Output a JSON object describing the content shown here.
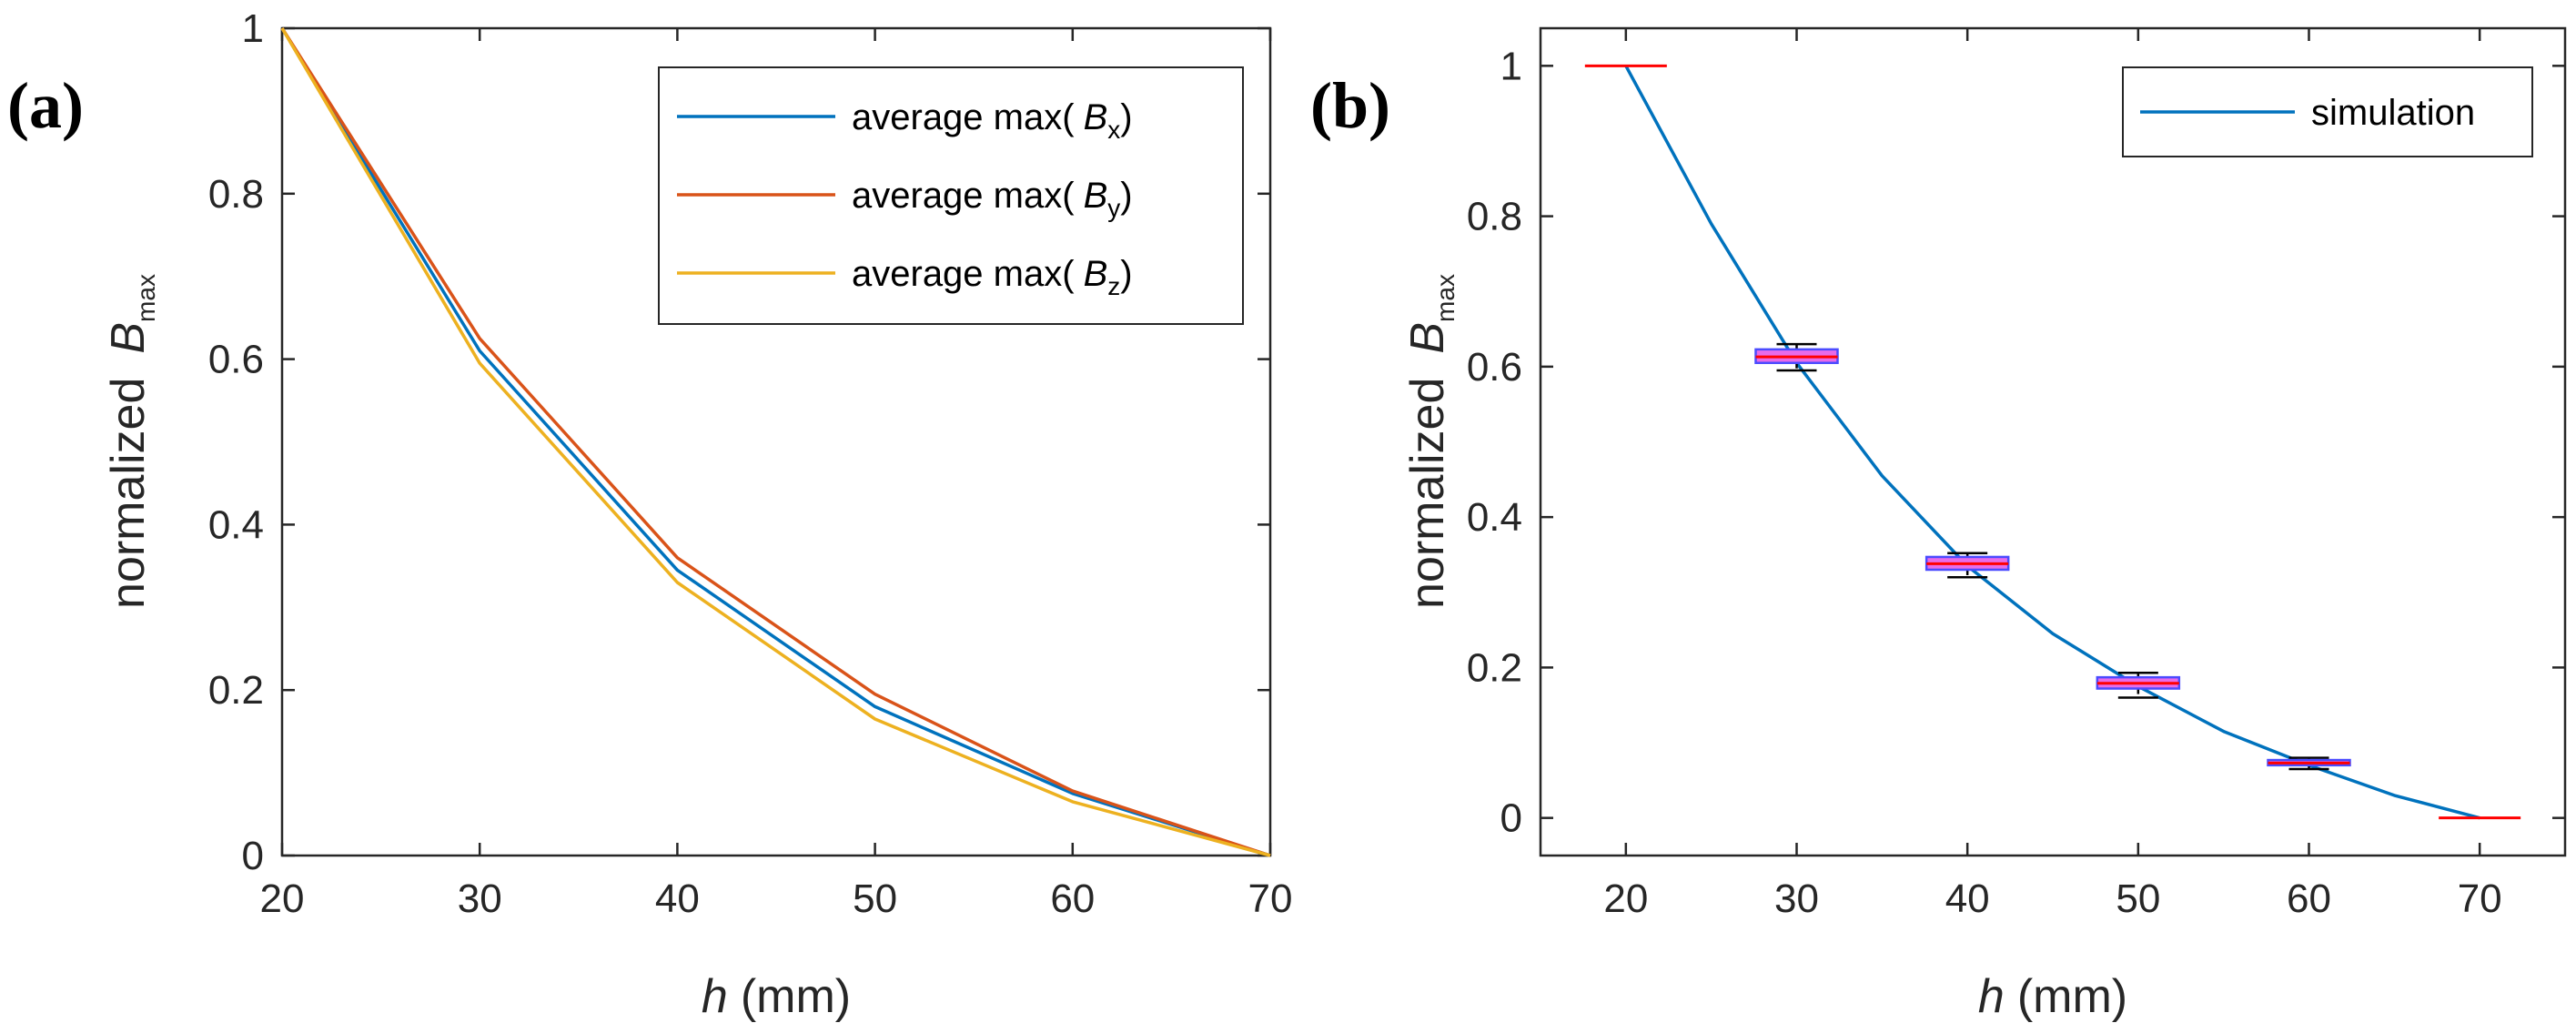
{
  "chart_data": [
    {
      "panel": "(a)",
      "type": "line",
      "xlabel_var": "h",
      "xlabel_unit": "(mm)",
      "ylabel_prefix": "normalized",
      "ylabel_var": "B",
      "ylabel_sub": "max",
      "xlim": [
        20,
        70
      ],
      "ylim": [
        0,
        1
      ],
      "xticks": [
        20,
        30,
        40,
        50,
        60,
        70
      ],
      "yticks": [
        0,
        0.2,
        0.4,
        0.6,
        0.8,
        1
      ],
      "ytick_labels": [
        "0",
        "0.2",
        "0.4",
        "0.6",
        "0.8",
        "1"
      ],
      "legend_position": "top-right",
      "x": [
        20,
        30,
        40,
        50,
        60,
        70
      ],
      "series": [
        {
          "name": "average max( B_x)",
          "label_prefix": "average max(",
          "label_var": "B",
          "label_sub": "x",
          "label_suffix": ")",
          "color": "#0072BD",
          "values": [
            1,
            0.61,
            0.345,
            0.18,
            0.075,
            0
          ]
        },
        {
          "name": "average max( B_y)",
          "label_prefix": "average max(",
          "label_var": "B",
          "label_sub": "y",
          "label_suffix": ")",
          "color": "#D95319",
          "values": [
            1,
            0.625,
            0.36,
            0.195,
            0.078,
            0
          ]
        },
        {
          "name": "average max( B_z)",
          "label_prefix": "average max(",
          "label_var": "B",
          "label_sub": "z",
          "label_suffix": ")",
          "color": "#EDB120",
          "values": [
            1,
            0.595,
            0.33,
            0.165,
            0.065,
            0
          ]
        }
      ]
    },
    {
      "panel": "(b)",
      "type": "line",
      "xlabel_var": "h",
      "xlabel_unit": "(mm)",
      "ylabel_prefix": "normalized",
      "ylabel_var": "B",
      "ylabel_sub": "max",
      "xlim": [
        15,
        75
      ],
      "ylim": [
        -0.05,
        1.05
      ],
      "xticks": [
        20,
        30,
        40,
        50,
        60,
        70
      ],
      "yticks": [
        0,
        0.2,
        0.4,
        0.6,
        0.8,
        1
      ],
      "ytick_labels": [
        "0",
        "0.2",
        "0.4",
        "0.6",
        "0.8",
        "1"
      ],
      "legend_position": "top-right",
      "series": [
        {
          "name": "simulation",
          "color": "#0072BD",
          "x": [
            20,
            25,
            30,
            35,
            40,
            45,
            50,
            55,
            60,
            65,
            70
          ],
          "values": [
            1,
            0.79,
            0.605,
            0.455,
            0.335,
            0.245,
            0.175,
            0.115,
            0.07,
            0.03,
            0
          ]
        }
      ],
      "boxplots": [
        {
          "x": 20,
          "whisker_low": 1,
          "q1": 1,
          "median": 1,
          "q3": 1,
          "whisker_high": 1
        },
        {
          "x": 30,
          "whisker_low": 0.595,
          "q1": 0.605,
          "median": 0.613,
          "q3": 0.623,
          "whisker_high": 0.63
        },
        {
          "x": 40,
          "whisker_low": 0.32,
          "q1": 0.33,
          "median": 0.338,
          "q3": 0.347,
          "whisker_high": 0.352
        },
        {
          "x": 50,
          "whisker_low": 0.16,
          "q1": 0.172,
          "median": 0.179,
          "q3": 0.187,
          "whisker_high": 0.193
        },
        {
          "x": 60,
          "whisker_low": 0.065,
          "q1": 0.07,
          "median": 0.073,
          "q3": 0.077,
          "whisker_high": 0.08
        },
        {
          "x": 70,
          "whisker_low": 0,
          "q1": 0,
          "median": 0,
          "q3": 0,
          "whisker_high": 0
        }
      ],
      "box_colors": {
        "box": "#4B4BFF",
        "median": "#FF0000",
        "fill": "#E86BE8",
        "whisker": "#000000"
      }
    }
  ]
}
